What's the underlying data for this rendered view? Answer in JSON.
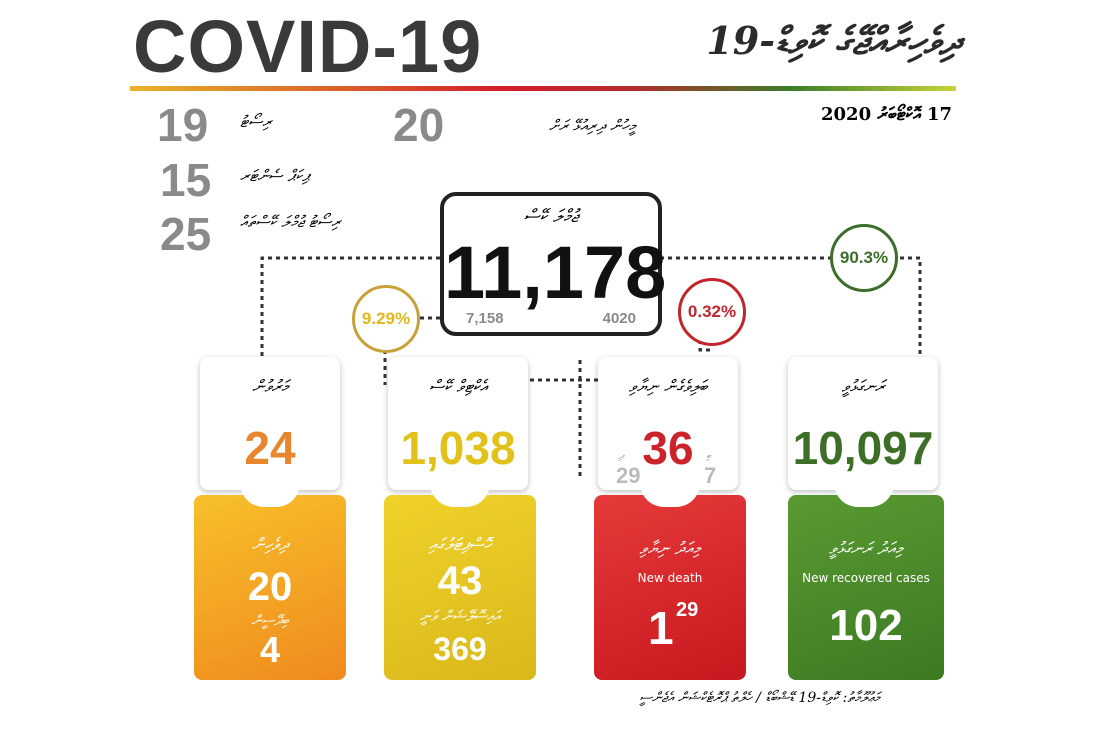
{
  "header": {
    "title": "COVID-19",
    "title_dv": "ދިވެހިރާއްޖޭގެ ކޮވިޑް-19",
    "date": "17 އޮކްޓޯބަރު 2020"
  },
  "locations": [
    {
      "value": "19",
      "label": "ރިސޯޓު"
    },
    {
      "value": "15",
      "label": "ޕިކަޕް ސެންޓަރ"
    },
    {
      "value": "25",
      "label": "ރިސޯޓު ޖުމްލަ ކޭސްތައް"
    }
  ],
  "islands": {
    "value": "20",
    "label": "މީހުން ދިރިއުޅޭ ރަށް"
  },
  "total": {
    "label": "ޖުމްލަ ކޭސް",
    "value": "11,178",
    "left": "7,158",
    "right": "4020"
  },
  "percents": {
    "active": "9.29%",
    "deaths": "0.32%",
    "recovered": "90.3%"
  },
  "cards": [
    {
      "label": "މަރުވުން",
      "value": "24",
      "sub": [
        {
          "label": "ދިވެހިން",
          "value": "20"
        },
        {
          "label": "ބިދޭސީން",
          "value": "4"
        }
      ]
    },
    {
      "label": "އެކްޓިވް ކޭސް",
      "value": "1,038",
      "sub": [
        {
          "label": "ހޮސްޕިޓަލުގައި",
          "value": "43"
        },
        {
          "label": "އައިސޮލޭޝަން ވަނީ",
          "value": "369"
        }
      ]
    },
    {
      "label": "ބަލިވެގެން ނިޔާވި",
      "value": "36",
      "split": [
        {
          "label": "ދި",
          "value": "29"
        },
        {
          "label": "ބި",
          "value": "7"
        }
      ],
      "sub_label": "މިއަދު ނިޔާވި",
      "sub_label_en": "New death",
      "sub_value": "1",
      "sub_sup": "29"
    },
    {
      "label": "ރަނގަޅުވީ",
      "value": "10,097",
      "sub_label": "މިއަދު ރަނގަޅުވީ",
      "sub_label_en": "New recovered cases",
      "sub_value": "102"
    }
  ],
  "footer": "މަޢުލޫމާތު: ކޮވިޑް-19 ޑޭޝްބޯޑް / ހެލްތު ޕްރޮޓެކްޝަން އެޖެންސީ"
}
